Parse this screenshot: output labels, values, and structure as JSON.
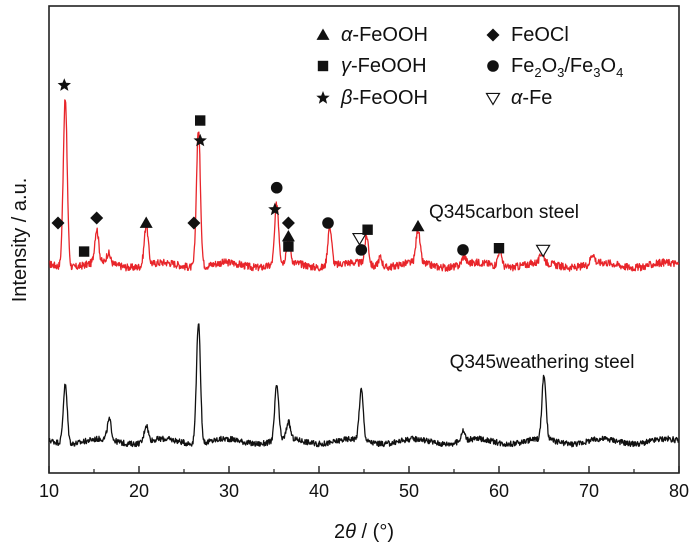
{
  "chart_data": {
    "type": "line",
    "xlabel_prefix": "2",
    "xlabel_theta": "θ",
    "xlabel_suffix": " / (°)",
    "ylabel": "Intensity /  a.u.",
    "xlim": [
      10,
      80
    ],
    "x_ticks": [
      10,
      20,
      30,
      40,
      50,
      60,
      70,
      80
    ],
    "y_ticks_shown": false,
    "grid": false,
    "legend_position": "top-right",
    "legend": [
      {
        "symbol": "triangle-up",
        "prefix": "α",
        "text": "-FeOOH"
      },
      {
        "symbol": "diamond",
        "prefix": "",
        "text": "FeOCl"
      },
      {
        "symbol": "square",
        "prefix": "γ",
        "text": "-FeOOH"
      },
      {
        "symbol": "circle",
        "prefix": "",
        "text": "Fe2O3/Fe3O4",
        "parts": [
          "Fe",
          "2",
          "O",
          "3",
          "/Fe",
          "3",
          "O",
          "4"
        ]
      },
      {
        "symbol": "star",
        "prefix": "β",
        "text": "-FeOOH"
      },
      {
        "symbol": "triangle-down-open",
        "prefix": "α",
        "text": "-Fe"
      }
    ],
    "series": [
      {
        "name": "Q345carbon steel",
        "color": "#e8252a",
        "baseline": 0.0,
        "noise": 0.022,
        "peaks": [
          {
            "x": 11.8,
            "h": 1.0
          },
          {
            "x": 15.3,
            "h": 0.2
          },
          {
            "x": 16.6,
            "h": 0.06
          },
          {
            "x": 20.8,
            "h": 0.24
          },
          {
            "x": 26.6,
            "h": 0.82
          },
          {
            "x": 35.3,
            "h": 0.36
          },
          {
            "x": 36.6,
            "h": 0.14
          },
          {
            "x": 41.2,
            "h": 0.24
          },
          {
            "x": 45.3,
            "h": 0.17
          },
          {
            "x": 46.8,
            "h": 0.06
          },
          {
            "x": 51.0,
            "h": 0.2
          },
          {
            "x": 56.1,
            "h": 0.05
          },
          {
            "x": 60.1,
            "h": 0.1
          },
          {
            "x": 64.8,
            "h": 0.06
          },
          {
            "x": 70.4,
            "h": 0.06
          }
        ]
      },
      {
        "name": "Q345weathering steel",
        "color": "#111111",
        "baseline": -1.05,
        "noise": 0.017,
        "peaks": [
          {
            "x": 11.8,
            "h": 0.35
          },
          {
            "x": 16.7,
            "h": 0.12
          },
          {
            "x": 20.8,
            "h": 0.1
          },
          {
            "x": 26.6,
            "h": 0.72
          },
          {
            "x": 35.3,
            "h": 0.33
          },
          {
            "x": 36.6,
            "h": 0.1
          },
          {
            "x": 44.7,
            "h": 0.3
          },
          {
            "x": 56.0,
            "h": 0.06
          },
          {
            "x": 65.0,
            "h": 0.38
          }
        ]
      }
    ],
    "markers": [
      {
        "symbol": "diamond",
        "x": 11.0,
        "y": 0.25
      },
      {
        "symbol": "star",
        "x": 11.7,
        "y": 1.07
      },
      {
        "symbol": "square",
        "x": 13.9,
        "y": 0.08
      },
      {
        "symbol": "diamond",
        "x": 15.3,
        "y": 0.28
      },
      {
        "symbol": "triangle-up",
        "x": 20.8,
        "y": 0.25
      },
      {
        "symbol": "diamond",
        "x": 26.1,
        "y": 0.25
      },
      {
        "symbol": "square",
        "x": 26.8,
        "y": 0.86
      },
      {
        "symbol": "star",
        "x": 26.8,
        "y": 0.74
      },
      {
        "symbol": "circle",
        "x": 35.3,
        "y": 0.46
      },
      {
        "symbol": "star",
        "x": 35.1,
        "y": 0.33
      },
      {
        "symbol": "diamond",
        "x": 36.6,
        "y": 0.25
      },
      {
        "symbol": "triangle-up",
        "x": 36.6,
        "y": 0.17
      },
      {
        "symbol": "square",
        "x": 36.6,
        "y": 0.11
      },
      {
        "symbol": "circle",
        "x": 41.0,
        "y": 0.25
      },
      {
        "symbol": "triangle-down-open",
        "x": 44.5,
        "y": 0.16
      },
      {
        "symbol": "square",
        "x": 45.4,
        "y": 0.21
      },
      {
        "symbol": "circle",
        "x": 44.7,
        "y": 0.09
      },
      {
        "symbol": "triangle-up",
        "x": 51.0,
        "y": 0.23
      },
      {
        "symbol": "circle",
        "x": 56.0,
        "y": 0.09
      },
      {
        "symbol": "square",
        "x": 60.0,
        "y": 0.1
      },
      {
        "symbol": "triangle-down-open",
        "x": 64.9,
        "y": 0.09
      }
    ]
  }
}
